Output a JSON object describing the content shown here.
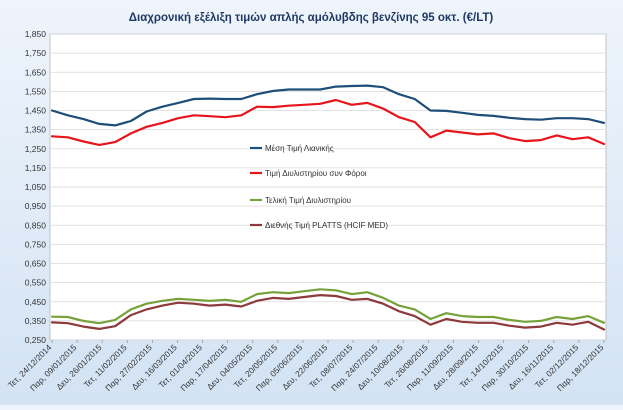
{
  "chart_data": {
    "type": "line",
    "title": "Διαχρονική εξέλιξη τιμών απλής αμόλυβδης βενζίνης 95 οκτ. (€/LT)",
    "xlabel": "",
    "ylabel": "",
    "ylim": [
      0.25,
      1.85
    ],
    "yticks": [
      "1,850",
      "1,750",
      "1,650",
      "1,550",
      "1,450",
      "1,350",
      "1,250",
      "1,150",
      "1,050",
      "0,950",
      "0,850",
      "0,750",
      "0,650",
      "0,550",
      "0,450",
      "0,350",
      "0,250"
    ],
    "xticks": [
      "Τετ, 24/12/2014",
      "Παρ, 09/01/2015",
      "Δευ, 26/01/2015",
      "Τετ, 11/02/2015",
      "Παρ, 27/02/2015",
      "Δευ, 16/03/2015",
      "Τετ, 01/04/2015",
      "Παρ, 17/04/2015",
      "Δευ, 04/05/2015",
      "Τετ, 20/05/2015",
      "Παρ, 05/06/2015",
      "Δευ, 22/06/2015",
      "Τετ, 08/07/2015",
      "Παρ, 24/07/2015",
      "Δευ, 10/08/2015",
      "Τετ, 26/08/2015",
      "Παρ, 11/09/2015",
      "Δευ, 28/09/2015",
      "Τετ, 14/10/2015",
      "Παρ, 30/10/2015",
      "Δευ, 16/11/2015",
      "Τετ, 02/12/2015",
      "Παρ, 18/12/2015"
    ],
    "grid": true,
    "legend_position": "center",
    "series": [
      {
        "name": "Μέση Τιμή Λιανικής",
        "color": "#1f4e79",
        "values": [
          1.45,
          1.425,
          1.405,
          1.38,
          1.372,
          1.395,
          1.445,
          1.47,
          1.49,
          1.51,
          1.512,
          1.51,
          1.51,
          1.535,
          1.552,
          1.56,
          1.56,
          1.56,
          1.575,
          1.578,
          1.58,
          1.572,
          1.535,
          1.51,
          1.45,
          1.448,
          1.438,
          1.427,
          1.422,
          1.412,
          1.405,
          1.402,
          1.41,
          1.41,
          1.405,
          1.385
        ]
      },
      {
        "name": "Τιμή Διυλιστηρίου συν Φόροι",
        "color": "#e8141c",
        "values": [
          1.315,
          1.31,
          1.288,
          1.27,
          1.285,
          1.33,
          1.365,
          1.385,
          1.41,
          1.425,
          1.42,
          1.415,
          1.425,
          1.47,
          1.468,
          1.475,
          1.48,
          1.485,
          1.505,
          1.48,
          1.49,
          1.46,
          1.415,
          1.39,
          1.31,
          1.345,
          1.335,
          1.325,
          1.33,
          1.305,
          1.29,
          1.295,
          1.32,
          1.3,
          1.31,
          1.275
        ]
      },
      {
        "name": "Τελική Τιμή Διυλιστηρίου",
        "color": "#77a23b",
        "values": [
          0.372,
          0.37,
          0.35,
          0.338,
          0.355,
          0.41,
          0.44,
          0.455,
          0.465,
          0.46,
          0.455,
          0.46,
          0.45,
          0.49,
          0.5,
          0.495,
          0.505,
          0.515,
          0.51,
          0.49,
          0.5,
          0.47,
          0.43,
          0.41,
          0.36,
          0.39,
          0.375,
          0.37,
          0.37,
          0.355,
          0.345,
          0.35,
          0.37,
          0.36,
          0.375,
          0.34
        ]
      },
      {
        "name": "Διεθνής Τιμή PLATTS (HCIF MED)",
        "color": "#8c3a3c",
        "values": [
          0.342,
          0.338,
          0.32,
          0.308,
          0.322,
          0.38,
          0.41,
          0.43,
          0.445,
          0.44,
          0.43,
          0.435,
          0.425,
          0.455,
          0.47,
          0.465,
          0.475,
          0.485,
          0.48,
          0.46,
          0.465,
          0.44,
          0.4,
          0.375,
          0.33,
          0.36,
          0.345,
          0.34,
          0.34,
          0.325,
          0.315,
          0.32,
          0.34,
          0.33,
          0.345,
          0.305
        ]
      }
    ]
  }
}
